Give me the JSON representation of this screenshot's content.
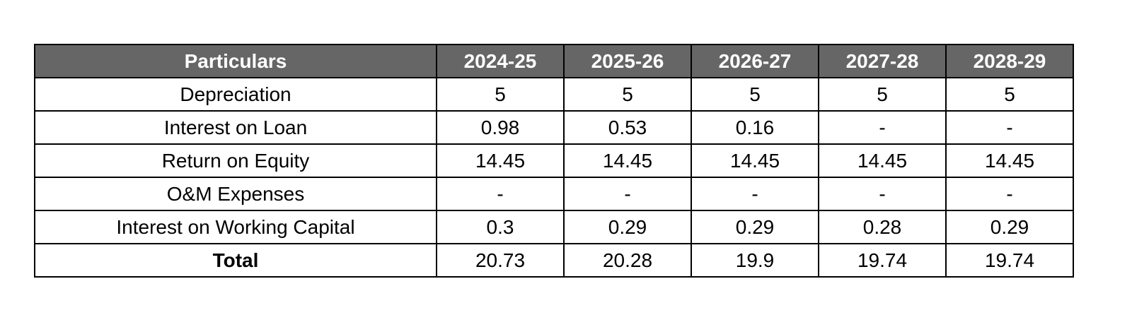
{
  "table": {
    "headers": [
      "Particulars",
      "2024-25",
      "2025-26",
      "2026-27",
      "2027-28",
      "2028-29"
    ],
    "rows": [
      {
        "label": "Depreciation",
        "values": [
          "5",
          "5",
          "5",
          "5",
          "5"
        ]
      },
      {
        "label": "Interest on Loan",
        "values": [
          "0.98",
          "0.53",
          "0.16",
          "-",
          "-"
        ]
      },
      {
        "label": "Return on Equity",
        "values": [
          "14.45",
          "14.45",
          "14.45",
          "14.45",
          "14.45"
        ]
      },
      {
        "label": "O&M Expenses",
        "values": [
          "-",
          "-",
          "-",
          "-",
          "-"
        ]
      },
      {
        "label": "Interest on Working Capital",
        "values": [
          "0.3",
          "0.29",
          "0.29",
          "0.28",
          "0.29"
        ]
      },
      {
        "label": "Total",
        "values": [
          "20.73",
          "20.28",
          "19.9",
          "19.74",
          "19.74"
        ]
      }
    ]
  },
  "colors": {
    "header_bg": "#666666",
    "header_text": "#ffffff",
    "border": "#000000"
  }
}
